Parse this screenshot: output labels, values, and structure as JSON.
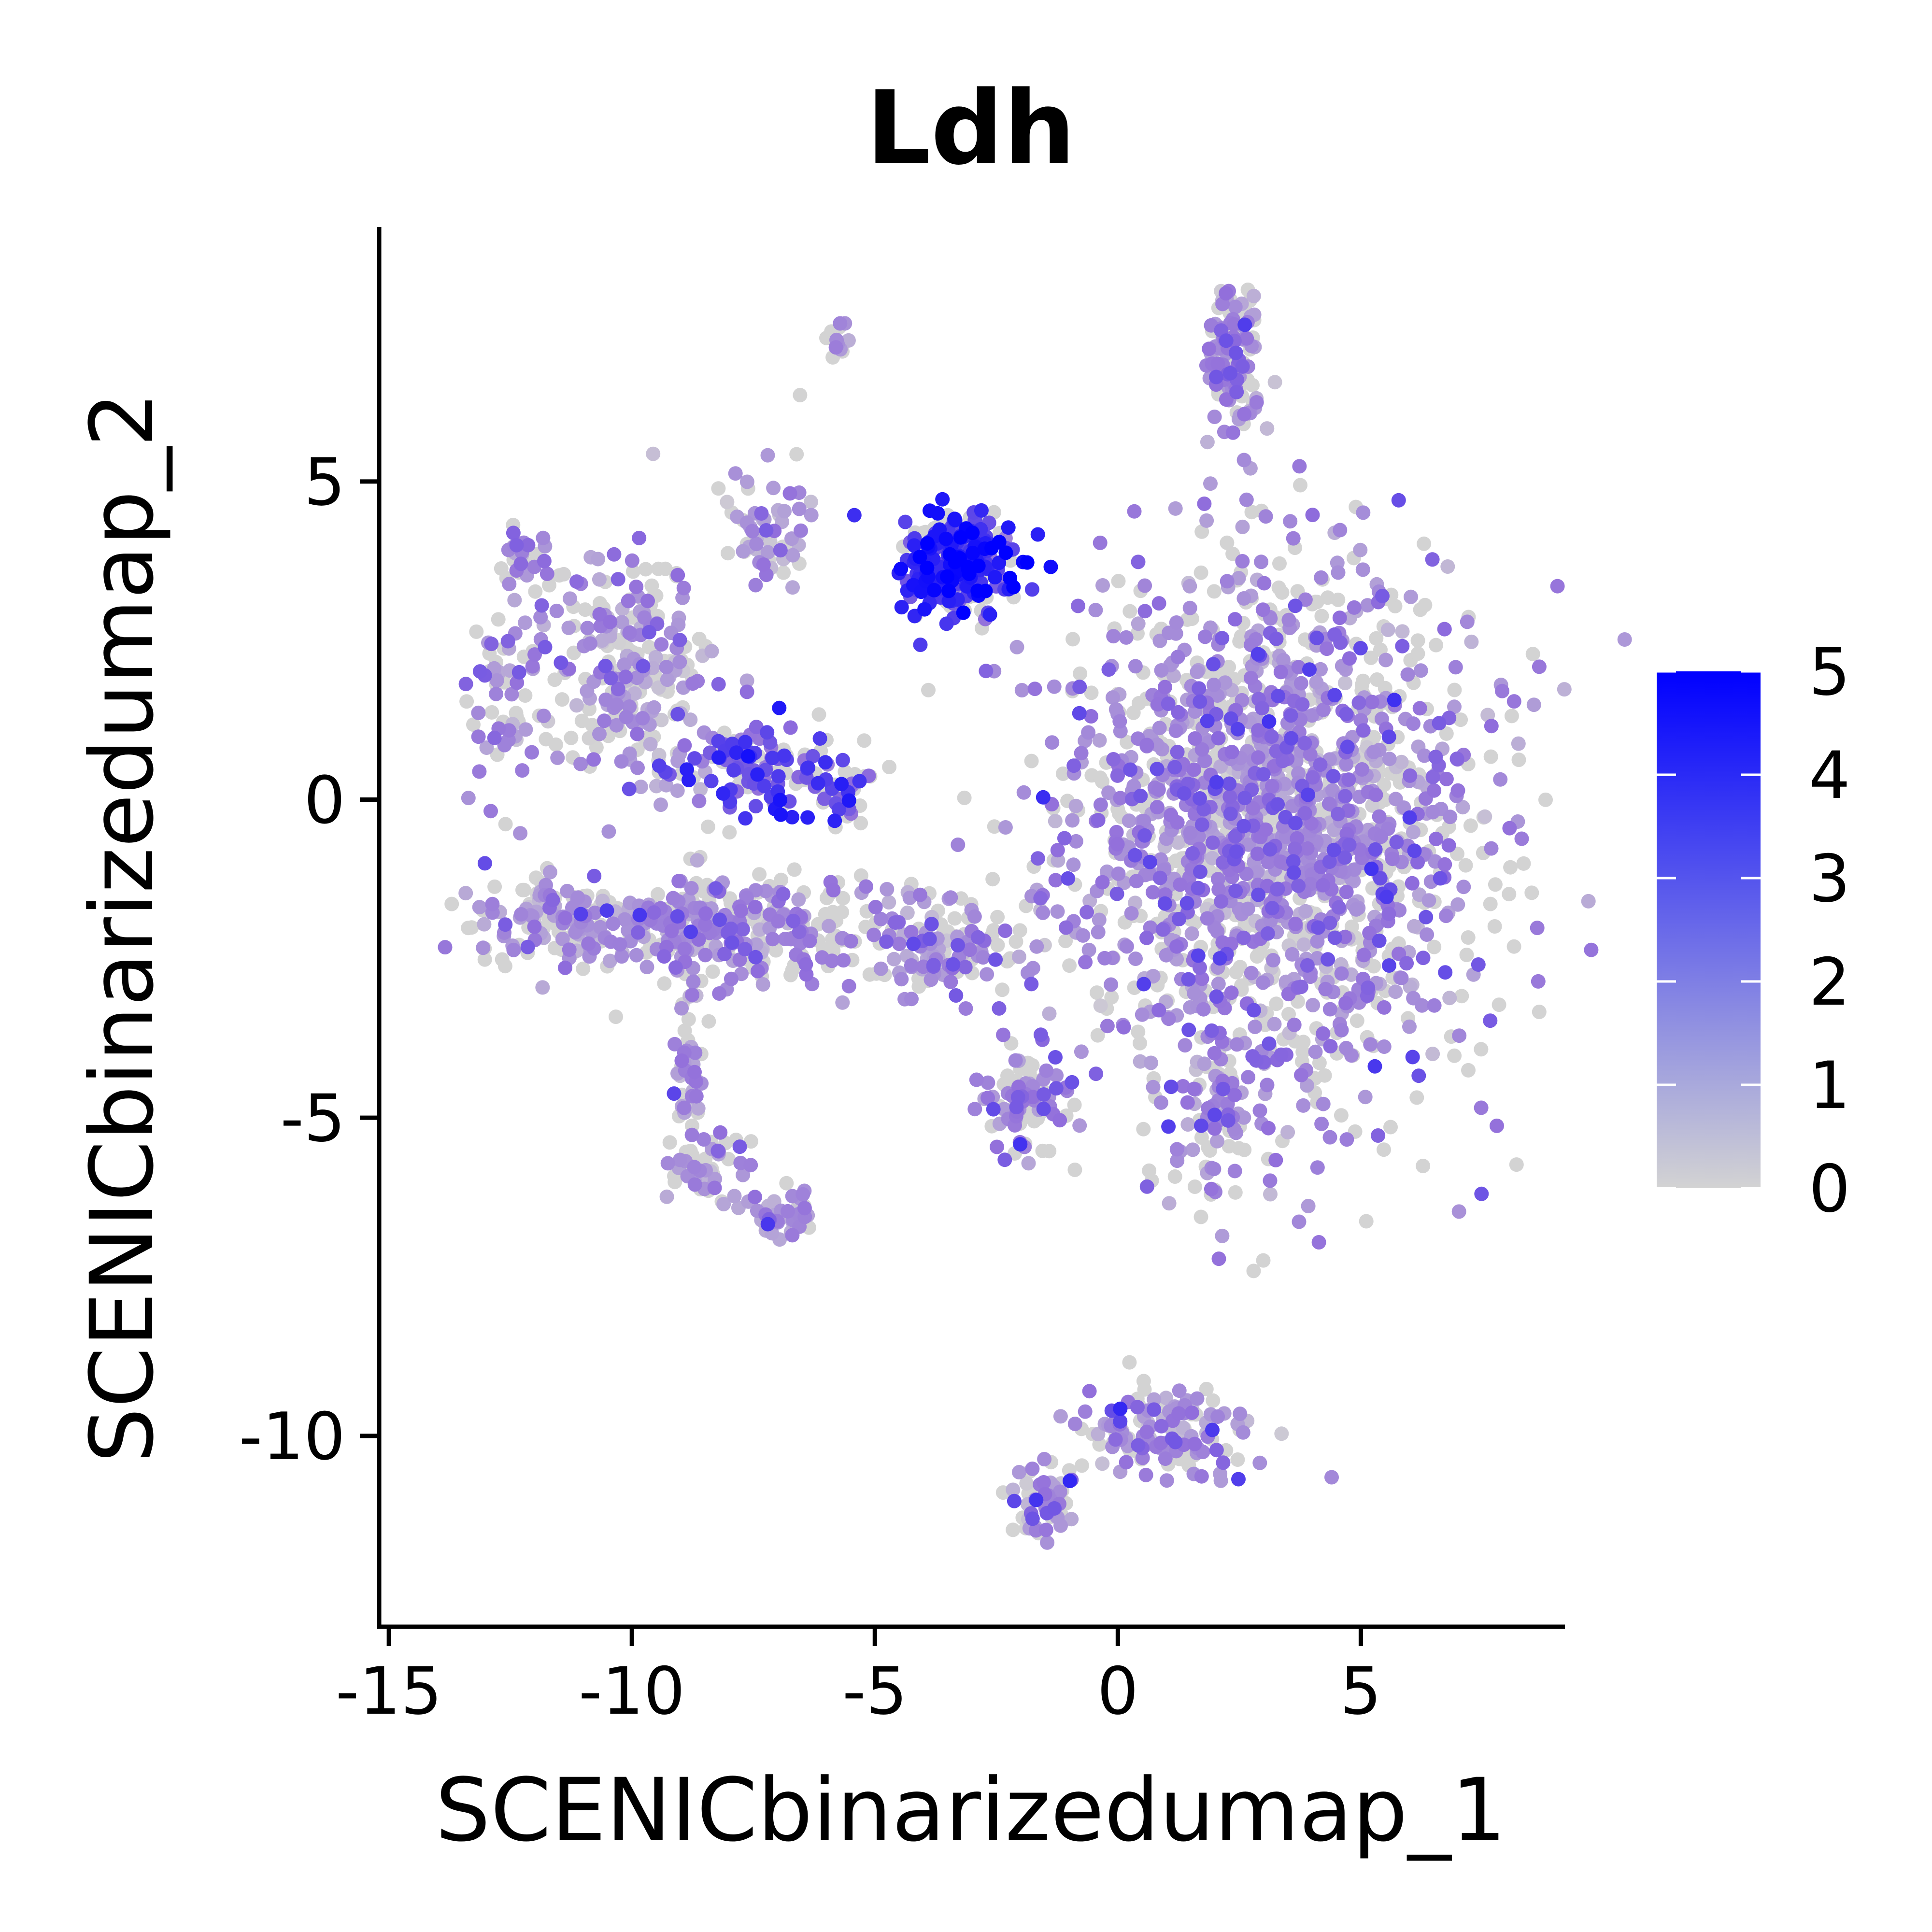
{
  "chart_data": {
    "type": "scatter",
    "title": "Ldh",
    "xlabel": "SCENICbinarizedumap_1",
    "ylabel": "SCENICbinarizedumap_2",
    "xlim": [
      -15.2,
      9.2
    ],
    "ylim": [
      -13,
      9
    ],
    "xticks": [
      -15,
      -10,
      -5,
      0,
      5
    ],
    "yticks": [
      -10,
      -5,
      0,
      5
    ],
    "grid": false,
    "legend": {
      "position": "right",
      "type": "colorbar",
      "min": 0,
      "max": 5,
      "ticks": [
        0,
        1,
        2,
        3,
        4,
        5
      ],
      "low_color": "#d3d3d3",
      "high_color": "#0000ff"
    },
    "clusters": [
      {
        "center": [
          2.4,
          7.0
        ],
        "spread": [
          0.3,
          0.6
        ],
        "n": 120,
        "expr_mean": 1.9
      },
      {
        "center": [
          -5.7,
          7.2
        ],
        "spread": [
          0.2,
          0.2
        ],
        "n": 12,
        "expr_mean": 2.0
      },
      {
        "center": [
          -3.3,
          3.7
        ],
        "spread": [
          0.55,
          0.35
        ],
        "n": 380,
        "expr_mean": 3.9
      },
      {
        "center": [
          -7.2,
          4.3
        ],
        "spread": [
          0.4,
          0.6
        ],
        "n": 60,
        "expr_mean": 1.7
      },
      {
        "center": [
          -12.2,
          3.8
        ],
        "spread": [
          0.3,
          0.3
        ],
        "n": 30,
        "expr_mean": 1.9
      },
      {
        "center": [
          -12.7,
          1.5
        ],
        "spread": [
          0.4,
          0.8
        ],
        "n": 60,
        "expr_mean": 2.0
      },
      {
        "center": [
          -10.0,
          2.0
        ],
        "spread": [
          0.9,
          0.9
        ],
        "n": 260,
        "expr_mean": 1.6
      },
      {
        "center": [
          -7.5,
          0.5
        ],
        "spread": [
          0.8,
          0.35
        ],
        "n": 120,
        "expr_mean": 3.2
      },
      {
        "center": [
          -5.8,
          0.2
        ],
        "spread": [
          0.4,
          0.3
        ],
        "n": 50,
        "expr_mean": 3.6
      },
      {
        "center": [
          -8.0,
          -2.0
        ],
        "spread": [
          1.8,
          0.45
        ],
        "n": 320,
        "expr_mean": 1.9
      },
      {
        "center": [
          -11.3,
          -1.9
        ],
        "spread": [
          1.0,
          0.35
        ],
        "n": 140,
        "expr_mean": 1.5
      },
      {
        "center": [
          -3.6,
          -2.3
        ],
        "spread": [
          0.9,
          0.4
        ],
        "n": 130,
        "expr_mean": 1.7
      },
      {
        "center": [
          3.3,
          -0.5
        ],
        "spread": [
          2.1,
          2.1
        ],
        "n": 1900,
        "expr_mean": 1.9
      },
      {
        "center": [
          -1.8,
          -4.8
        ],
        "spread": [
          0.5,
          0.4
        ],
        "n": 90,
        "expr_mean": 2.1
      },
      {
        "center": [
          2.1,
          -4.9
        ],
        "spread": [
          0.3,
          0.6
        ],
        "n": 60,
        "expr_mean": 2.1
      },
      {
        "center": [
          -8.8,
          -4.2
        ],
        "spread": [
          0.15,
          0.9
        ],
        "n": 50,
        "expr_mean": 1.7
      },
      {
        "center": [
          -8.4,
          -5.7
        ],
        "spread": [
          0.4,
          0.3
        ],
        "n": 50,
        "expr_mean": 1.8
      },
      {
        "center": [
          -7.0,
          -6.5
        ],
        "spread": [
          0.4,
          0.2
        ],
        "n": 50,
        "expr_mean": 1.8
      },
      {
        "center": [
          1.0,
          -10.0
        ],
        "spread": [
          0.9,
          0.4
        ],
        "n": 140,
        "expr_mean": 1.9
      },
      {
        "center": [
          -1.5,
          -11.0
        ],
        "spread": [
          0.3,
          0.3
        ],
        "n": 60,
        "expr_mean": 2.0
      }
    ]
  }
}
